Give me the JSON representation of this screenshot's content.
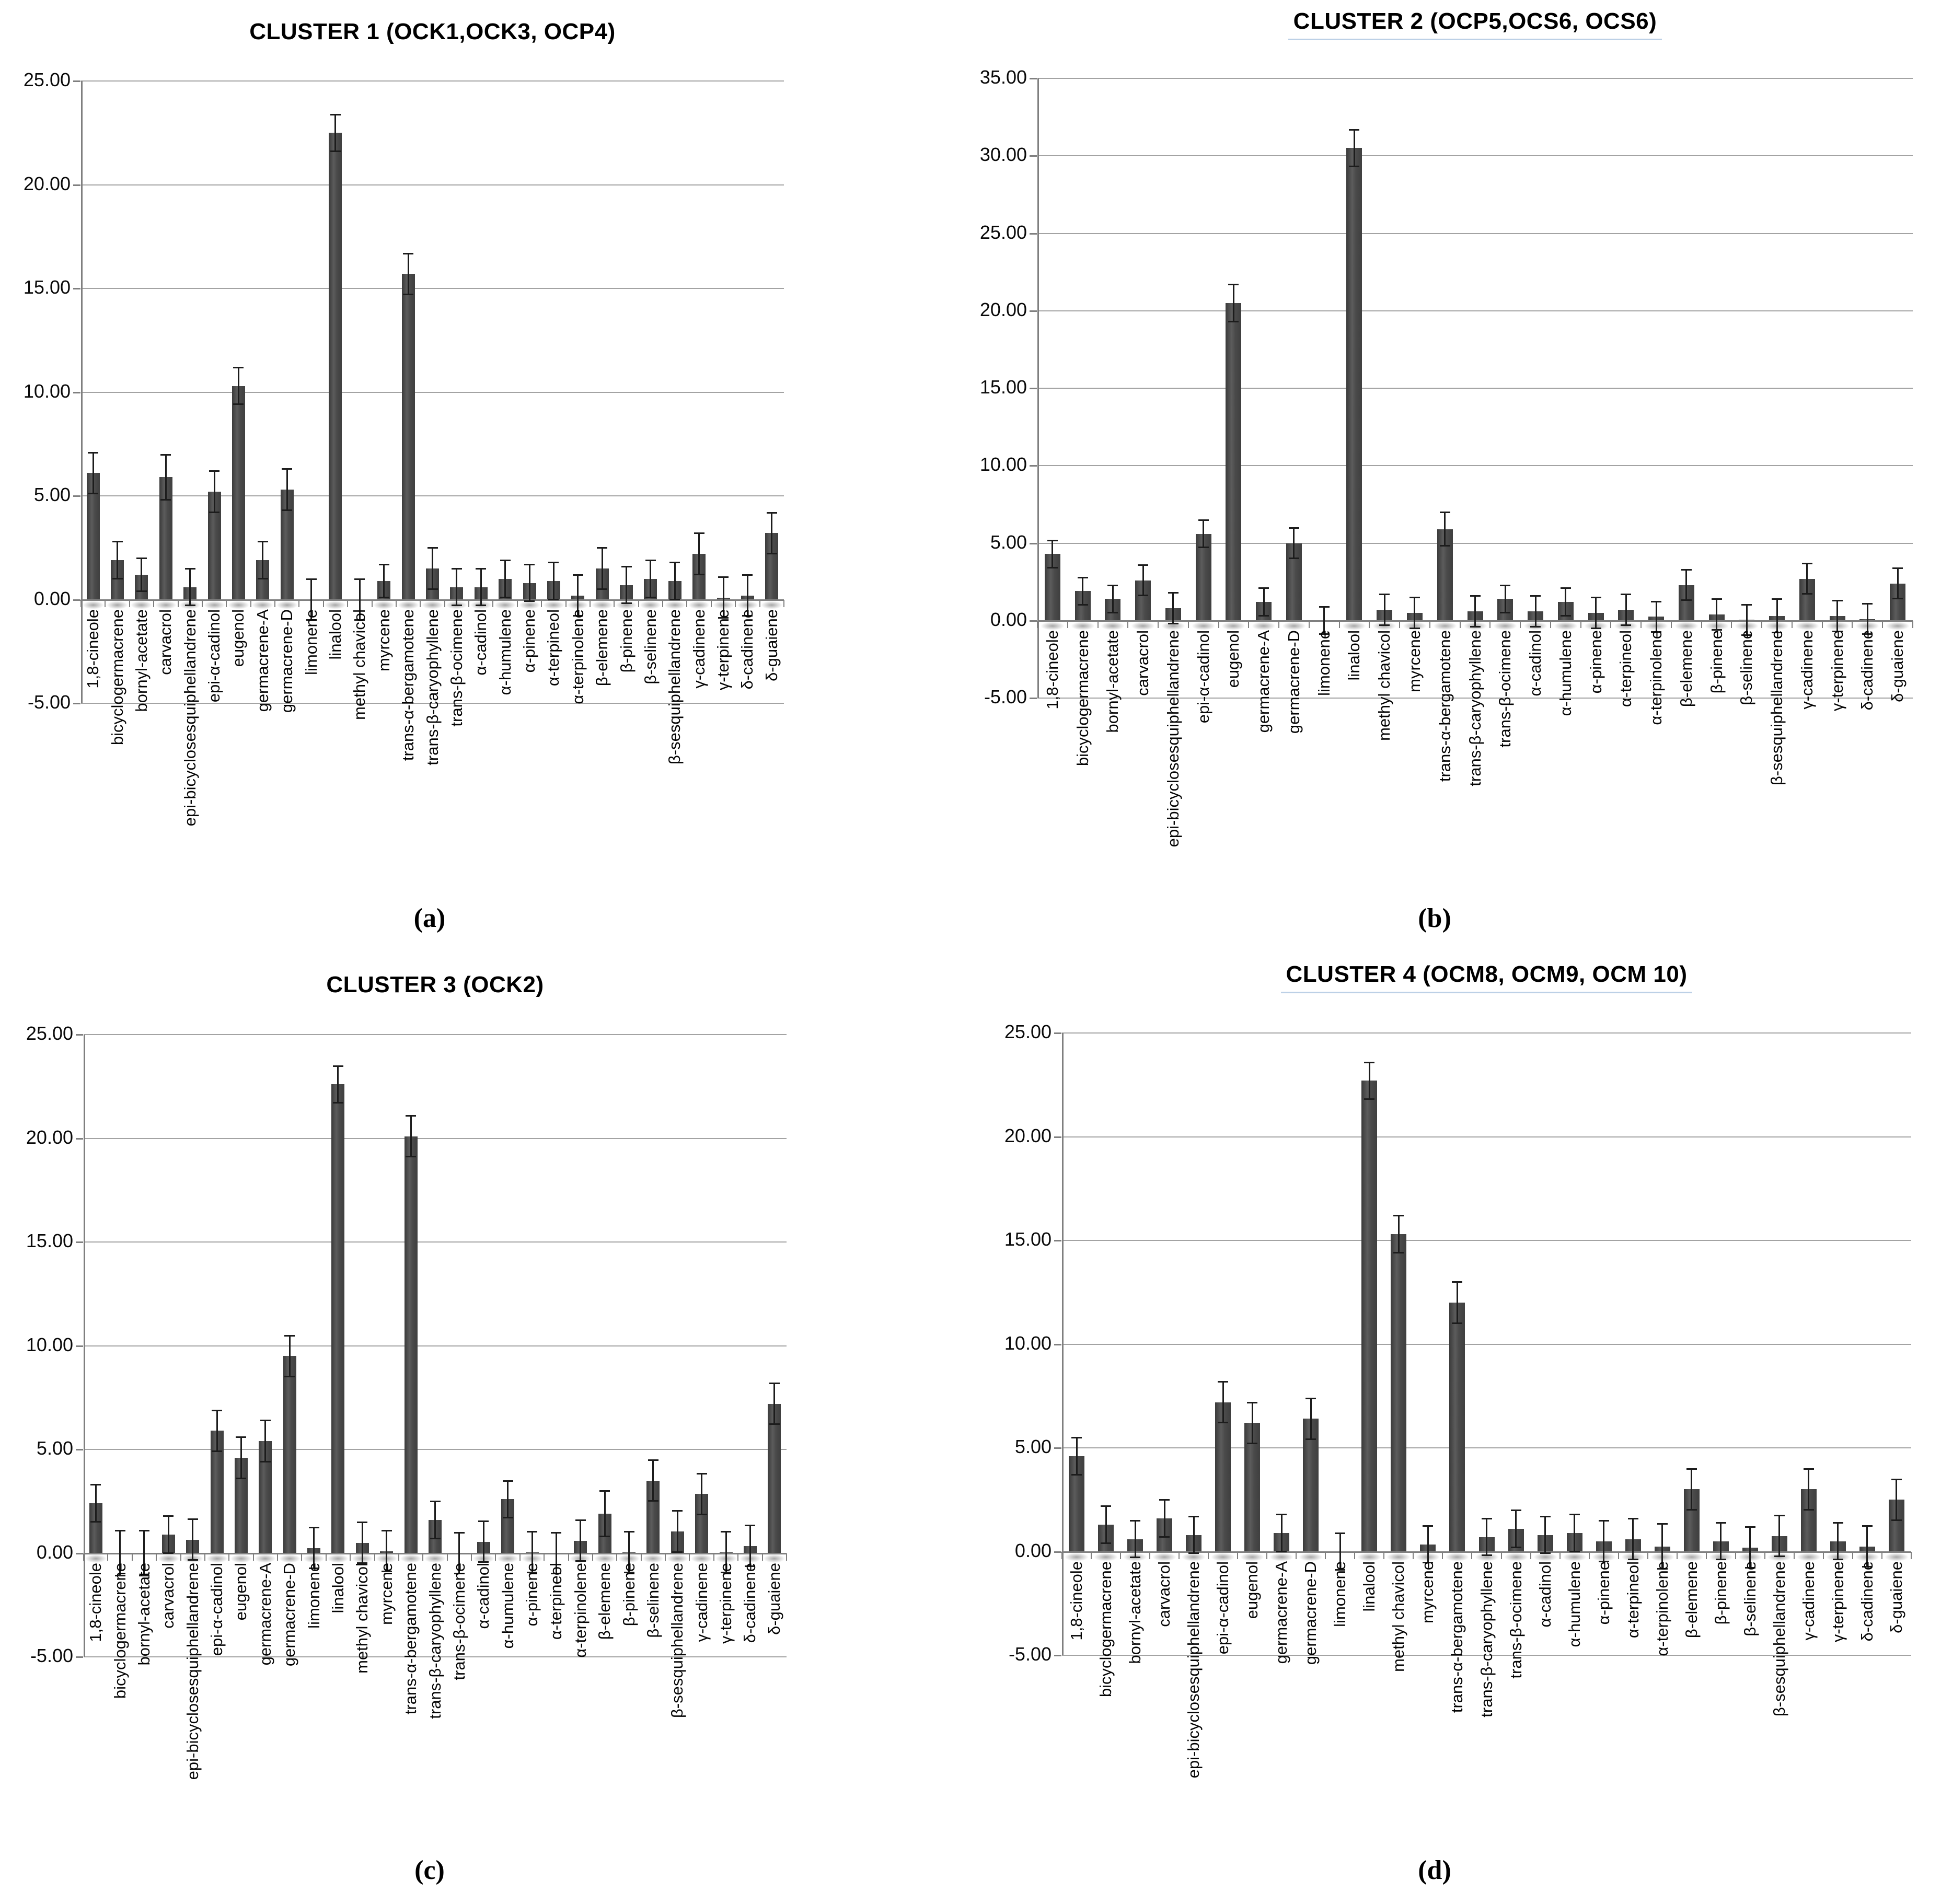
{
  "style": {
    "bar_color": "#464646",
    "grid_color": "#a3a3a3",
    "axis_color": "#7f7f7f",
    "error_bar_color": "#1c1c1c",
    "title_underline_color": "#bcd0e6",
    "text_color": "#000000",
    "background_color": "#ffffff"
  },
  "chart_data": [
    {
      "type": "bar",
      "panel_letter": "(a)",
      "title": "CLUSTER 1 (OCK1,OCK3, OCP4)",
      "title_underlined": false,
      "xlabel": "",
      "ylabel": "",
      "ylim": [
        -5,
        25
      ],
      "ytick_step": 5,
      "ytick_decimals": 2,
      "grid": true,
      "error_bars": true,
      "legend": "none",
      "categories": [
        "1,8-cineole",
        "bicyclogermacrene",
        "bornyl-acetate",
        "carvacrol",
        "epi-bicyclosesquiphellandrene",
        "epi-α-cadinol",
        "eugenol",
        "germacrene-A",
        "germacrene-D",
        "limonene",
        "linalool",
        "methyl chavicol",
        "myrcene",
        "trans-α-bergamotene",
        "trans-β-caryophyllene",
        "trans-β-ocimene",
        "α-cadinol",
        "α-humulene",
        "α-pinene",
        "α-terpineol",
        "α-terpinolene",
        "β-elemene",
        "β-pinene",
        "β-selinene",
        "β-sesquiphellandrene",
        "γ-cadinene",
        "γ-terpinene",
        "δ-cadinene",
        "δ-guaiene"
      ],
      "values": [
        6.1,
        1.9,
        1.2,
        5.9,
        0.6,
        5.2,
        10.3,
        1.9,
        5.3,
        0.0,
        22.5,
        0.0,
        0.9,
        15.7,
        1.5,
        0.6,
        0.6,
        1.0,
        0.8,
        0.9,
        0.2,
        1.5,
        0.7,
        1.0,
        0.9,
        2.2,
        0.1,
        0.2,
        3.2
      ],
      "errors": [
        1.0,
        0.9,
        0.8,
        1.1,
        0.9,
        1.0,
        0.9,
        0.9,
        1.0,
        1.0,
        0.9,
        1.0,
        0.8,
        1.0,
        1.0,
        0.9,
        0.9,
        0.9,
        0.9,
        0.9,
        1.0,
        1.0,
        0.9,
        0.9,
        0.9,
        1.0,
        1.0,
        1.0,
        1.0
      ]
    },
    {
      "type": "bar",
      "panel_letter": "(b)",
      "title": "CLUSTER 2 (OCP5,OCS6, OCS6)",
      "title_underlined": true,
      "xlabel": "",
      "ylabel": "",
      "ylim": [
        -5,
        35
      ],
      "ytick_step": 5,
      "ytick_decimals": 2,
      "grid": true,
      "error_bars": true,
      "legend": "none",
      "categories": [
        "1,8-cineole",
        "bicyclogermacrene",
        "bornyl-acetate",
        "carvacrol",
        "epi-bicyclosesquiphellandrene",
        "epi-α-cadinol",
        "eugenol",
        "germacrene-A",
        "germacrene-D",
        "limonene",
        "linalool",
        "methyl chavicol",
        "myrcene",
        "trans-α-bergamotene",
        "trans-β-caryophyllene",
        "trans-β-ocimene",
        "α-cadinol",
        "α-humulene",
        "α-pinene",
        "α-terpineol",
        "α-terpinolene",
        "β-elemene",
        "β-pinene",
        "β-selinene",
        "β-sesquiphellandrene",
        "γ-cadinene",
        "γ-terpinene",
        "δ-cadinene",
        "δ-guaiene"
      ],
      "values": [
        4.3,
        1.9,
        1.4,
        2.6,
        0.8,
        5.6,
        20.5,
        1.2,
        5.0,
        0.0,
        30.5,
        0.7,
        0.5,
        5.9,
        0.6,
        1.4,
        0.6,
        1.2,
        0.5,
        0.7,
        0.25,
        2.3,
        0.4,
        0.05,
        0.3,
        2.7,
        0.3,
        0.1,
        2.4
      ],
      "errors": [
        0.9,
        0.9,
        0.9,
        1.0,
        1.0,
        0.9,
        1.2,
        0.9,
        1.0,
        0.9,
        1.2,
        1.0,
        1.0,
        1.1,
        1.0,
        0.9,
        1.0,
        0.9,
        1.0,
        1.0,
        1.0,
        1.0,
        1.0,
        1.0,
        1.1,
        1.0,
        1.0,
        1.0,
        1.0
      ]
    },
    {
      "type": "bar",
      "panel_letter": "(c)",
      "title": "CLUSTER 3 (OCK2)",
      "title_underlined": false,
      "xlabel": "",
      "ylabel": "",
      "ylim": [
        -5,
        25
      ],
      "ytick_step": 5,
      "ytick_decimals": 2,
      "grid": true,
      "error_bars": true,
      "legend": "none",
      "categories": [
        "1,8-cineole",
        "bicyclogermacrene",
        "bornyl-acetate",
        "carvacrol",
        "epi-bicyclosesquiphellandrene",
        "epi-α-cadinol",
        "eugenol",
        "germacrene-A",
        "germacrene-D",
        "limonene",
        "linalool",
        "methyl chavicol",
        "myrcene",
        "trans-α-bergamotene",
        "trans-β-caryophyllene",
        "trans-β-ocimene",
        "α-cadinol",
        "α-humulene",
        "α-pinene",
        "α-terpineol",
        "α-terpinolene",
        "β-elemene",
        "β-pinene",
        "β-selinene",
        "β-sesquiphellandrene",
        "γ-cadinene",
        "γ-terpinene",
        "δ-cadinene",
        "δ-guaiene"
      ],
      "values": [
        2.4,
        0.0,
        0.0,
        0.9,
        0.65,
        5.9,
        4.6,
        5.4,
        9.5,
        0.25,
        22.6,
        0.5,
        0.1,
        20.1,
        1.6,
        0.0,
        0.55,
        2.6,
        0.05,
        0.0,
        0.6,
        1.9,
        0.05,
        3.5,
        1.05,
        2.85,
        0.05,
        0.35,
        7.2
      ],
      "errors": [
        0.9,
        1.1,
        1.1,
        0.9,
        1.0,
        1.0,
        1.0,
        1.0,
        1.0,
        1.0,
        0.9,
        1.0,
        1.0,
        1.0,
        0.9,
        1.0,
        1.0,
        0.9,
        1.0,
        1.0,
        1.0,
        1.1,
        1.0,
        1.0,
        1.0,
        1.0,
        1.0,
        1.0,
        1.0
      ]
    },
    {
      "type": "bar",
      "panel_letter": "(d)",
      "title": "CLUSTER 4 (OCM8, OCM9, OCM 10)",
      "title_underlined": true,
      "xlabel": "",
      "ylabel": "",
      "ylim": [
        -5,
        25
      ],
      "ytick_step": 5,
      "ytick_decimals": 2,
      "grid": true,
      "error_bars": true,
      "legend": "none",
      "categories": [
        "1,8-cineole",
        "bicyclogermacrene",
        "bornyl-acetate",
        "carvacrol",
        "epi-bicyclosesquiphellandrene",
        "epi-α-cadinol",
        "eugenol",
        "germacrene-A",
        "germacrene-D",
        "limonene",
        "linalool",
        "methyl chavicol",
        "myrcene",
        "trans-α-bergamotene",
        "trans-β-caryophyllene",
        "trans-β-ocimene",
        "α-cadinol",
        "α-humulene",
        "α-pinene",
        "α-terpineol",
        "α-terpinolene",
        "β-elemene",
        "β-pinene",
        "β-selinene",
        "β-sesquiphellandrene",
        "γ-cadinene",
        "γ-terpinene",
        "δ-cadinene",
        "δ-guaiene"
      ],
      "values": [
        4.6,
        1.3,
        0.6,
        1.6,
        0.8,
        7.2,
        6.2,
        0.9,
        6.4,
        0.0,
        22.7,
        15.3,
        0.35,
        12.0,
        0.7,
        1.1,
        0.8,
        0.9,
        0.5,
        0.6,
        0.25,
        3.0,
        0.5,
        0.2,
        0.75,
        3.0,
        0.5,
        0.25,
        2.5
      ],
      "errors": [
        0.9,
        0.9,
        0.9,
        0.9,
        0.9,
        1.0,
        1.0,
        0.9,
        1.0,
        0.9,
        0.9,
        0.9,
        0.9,
        1.0,
        0.9,
        0.9,
        0.9,
        0.9,
        1.0,
        1.0,
        1.1,
        1.0,
        0.9,
        1.0,
        1.0,
        1.0,
        0.9,
        1.0,
        1.0
      ]
    }
  ]
}
